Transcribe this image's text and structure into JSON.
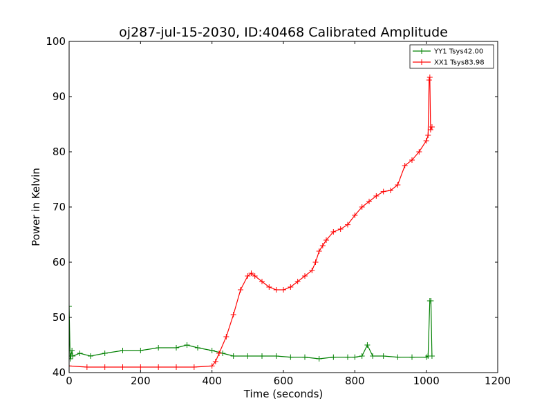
{
  "chart_data": {
    "type": "line",
    "title": "oj287-jul-15-2030, ID:40468 Calibrated Amplitude",
    "xlabel": "Time (seconds)",
    "ylabel": "Power in Kelvin",
    "xlim": [
      0,
      1200
    ],
    "ylim": [
      40,
      100
    ],
    "xticks": [
      0,
      200,
      400,
      600,
      800,
      1000,
      1200
    ],
    "yticks": [
      40,
      50,
      60,
      70,
      80,
      90,
      100
    ],
    "grid": false,
    "legend_position": "top-right",
    "series": [
      {
        "name": "YY1 Tsys42.00",
        "color": "#008000",
        "marker": "+",
        "x": [
          0,
          3,
          5,
          8,
          10,
          30,
          60,
          100,
          150,
          200,
          250,
          300,
          330,
          360,
          400,
          430,
          460,
          500,
          540,
          580,
          620,
          660,
          700,
          740,
          780,
          800,
          820,
          835,
          850,
          880,
          920,
          960,
          1000,
          1005,
          1010,
          1013,
          1016
        ],
        "y": [
          52.0,
          42.5,
          43.0,
          44.0,
          43.0,
          43.5,
          43.0,
          43.5,
          44.0,
          44.0,
          44.5,
          44.5,
          45.0,
          44.5,
          44.0,
          43.5,
          43.0,
          43.0,
          43.0,
          43.0,
          42.8,
          42.8,
          42.5,
          42.8,
          42.8,
          42.8,
          43.0,
          45.0,
          43.0,
          43.0,
          42.8,
          42.8,
          42.8,
          43.0,
          53.0,
          53.0,
          43.0
        ]
      },
      {
        "name": "XX1 Tsys83.98",
        "color": "#ff0000",
        "marker": "+",
        "x": [
          0,
          50,
          100,
          150,
          200,
          250,
          300,
          350,
          400,
          410,
          420,
          440,
          460,
          480,
          500,
          510,
          520,
          540,
          560,
          580,
          600,
          620,
          640,
          660,
          680,
          690,
          700,
          710,
          720,
          740,
          760,
          780,
          800,
          820,
          840,
          860,
          880,
          900,
          920,
          940,
          960,
          980,
          1000,
          1005,
          1008,
          1010,
          1012,
          1016
        ],
        "y": [
          41.2,
          41.0,
          41.0,
          41.0,
          41.0,
          41.0,
          41.0,
          41.0,
          41.2,
          42.0,
          43.5,
          46.5,
          50.5,
          55.0,
          57.5,
          58.0,
          57.5,
          56.5,
          55.5,
          55.0,
          55.0,
          55.5,
          56.5,
          57.5,
          58.5,
          60.0,
          62.0,
          63.0,
          64.0,
          65.5,
          66.0,
          66.8,
          68.5,
          70.0,
          71.0,
          72.0,
          72.8,
          73.0,
          74.0,
          77.5,
          78.5,
          80.0,
          82.0,
          83.0,
          93.0,
          93.5,
          84.0,
          84.5
        ]
      }
    ]
  }
}
